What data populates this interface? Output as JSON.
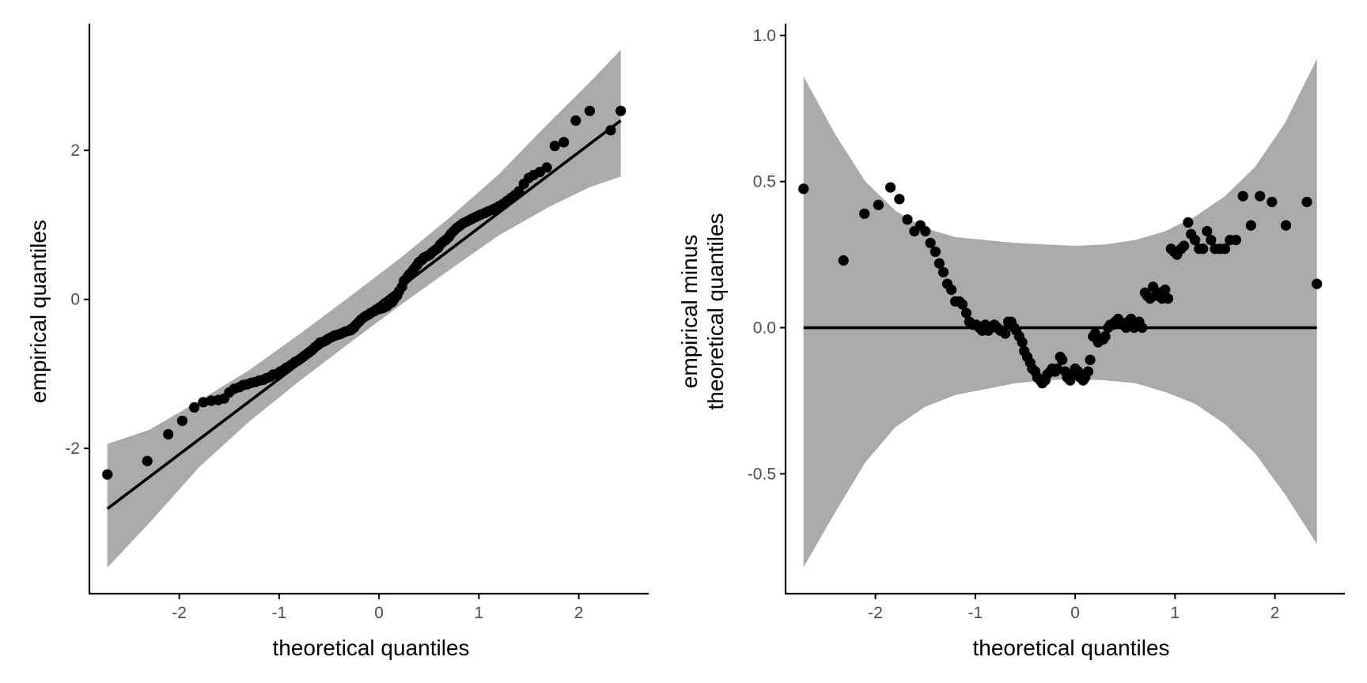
{
  "colors": {
    "band": "#aaaaaa",
    "points": "#000000",
    "line": "#000000",
    "background": "#ffffff"
  },
  "chart_data": [
    {
      "type": "scatter",
      "panel": "left",
      "title": "",
      "xlabel": "theoretical quantiles",
      "ylabel": "empirical quantiles",
      "xlim": [
        -2.9,
        2.7
      ],
      "ylim": [
        -3.95,
        3.7
      ],
      "xticks": [
        -2,
        -1,
        0,
        1,
        2
      ],
      "xtick_labels": [
        "-2",
        "-1",
        "0",
        "1",
        "2"
      ],
      "yticks": [
        -2,
        0,
        2
      ],
      "ytick_labels": [
        "-2",
        "0",
        "2"
      ],
      "grid": false,
      "reference_line": {
        "x": [
          -2.72,
          2.42
        ],
        "y": [
          -2.81,
          2.4
        ]
      },
      "confidence_band": {
        "x": [
          -2.72,
          -2.3,
          -1.8,
          -1.3,
          -0.8,
          -0.3,
          0.2,
          0.7,
          1.2,
          1.7,
          2.1,
          2.42
        ],
        "lower": [
          -3.6,
          -3.0,
          -2.25,
          -1.64,
          -1.1,
          -0.59,
          -0.09,
          0.39,
          0.86,
          1.24,
          1.5,
          1.65
        ],
        "upper": [
          -1.94,
          -1.75,
          -1.36,
          -0.95,
          -0.47,
          0.03,
          0.54,
          1.09,
          1.68,
          2.37,
          2.9,
          3.35
        ]
      },
      "points": {
        "x": [
          -2.72,
          -2.32,
          -2.11,
          -1.97,
          -1.85,
          -1.76,
          -1.68,
          -1.61,
          -1.55,
          -1.5,
          -1.45,
          -1.4,
          -1.36,
          -1.32,
          -1.28,
          -1.24,
          -1.2,
          -1.16,
          -1.13,
          -1.09,
          -1.06,
          -1.02,
          -0.99,
          -0.96,
          -0.93,
          -0.9,
          -0.87,
          -0.84,
          -0.81,
          -0.78,
          -0.75,
          -0.72,
          -0.7,
          -0.67,
          -0.64,
          -0.61,
          -0.59,
          -0.56,
          -0.53,
          -0.51,
          -0.48,
          -0.45,
          -0.43,
          -0.4,
          -0.38,
          -0.35,
          -0.33,
          -0.3,
          -0.28,
          -0.25,
          -0.23,
          -0.2,
          -0.18,
          -0.15,
          -0.13,
          -0.1,
          -0.08,
          -0.05,
          -0.03,
          0.0,
          0.03,
          0.05,
          0.08,
          0.1,
          0.13,
          0.15,
          0.18,
          0.2,
          0.23,
          0.25,
          0.28,
          0.3,
          0.33,
          0.35,
          0.38,
          0.4,
          0.43,
          0.45,
          0.48,
          0.51,
          0.53,
          0.56,
          0.59,
          0.61,
          0.64,
          0.67,
          0.7,
          0.72,
          0.75,
          0.78,
          0.81,
          0.84,
          0.87,
          0.9,
          0.93,
          0.96,
          0.99,
          1.02,
          1.06,
          1.09,
          1.13,
          1.16,
          1.2,
          1.24,
          1.28,
          1.32,
          1.36,
          1.4,
          1.45,
          1.5,
          1.55,
          1.61,
          1.68,
          1.76,
          1.85,
          1.97,
          2.11,
          2.32,
          2.42
        ],
        "y": [
          -2.35,
          -2.17,
          -1.81,
          -1.63,
          -1.45,
          -1.38,
          -1.36,
          -1.35,
          -1.33,
          -1.25,
          -1.2,
          -1.18,
          -1.15,
          -1.14,
          -1.12,
          -1.11,
          -1.09,
          -1.08,
          -1.06,
          -1.04,
          -1.01,
          -1.0,
          -0.97,
          -0.95,
          -0.92,
          -0.9,
          -0.87,
          -0.84,
          -0.82,
          -0.79,
          -0.76,
          -0.73,
          -0.71,
          -0.68,
          -0.64,
          -0.61,
          -0.58,
          -0.57,
          -0.55,
          -0.53,
          -0.51,
          -0.49,
          -0.48,
          -0.47,
          -0.46,
          -0.44,
          -0.43,
          -0.42,
          -0.41,
          -0.38,
          -0.34,
          -0.3,
          -0.27,
          -0.24,
          -0.22,
          -0.2,
          -0.18,
          -0.16,
          -0.14,
          -0.13,
          -0.12,
          -0.11,
          -0.09,
          -0.06,
          -0.04,
          0.0,
          0.05,
          0.11,
          0.17,
          0.25,
          0.29,
          0.33,
          0.37,
          0.41,
          0.46,
          0.5,
          0.53,
          0.56,
          0.58,
          0.6,
          0.63,
          0.66,
          0.69,
          0.73,
          0.77,
          0.8,
          0.84,
          0.88,
          0.92,
          0.96,
          0.99,
          1.02,
          1.04,
          1.06,
          1.08,
          1.1,
          1.12,
          1.14,
          1.16,
          1.18,
          1.2,
          1.22,
          1.25,
          1.28,
          1.32,
          1.36,
          1.4,
          1.45,
          1.55,
          1.63,
          1.67,
          1.71,
          1.77,
          2.06,
          2.11,
          2.4,
          2.53,
          2.27,
          2.53
        ]
      }
    },
    {
      "type": "scatter",
      "panel": "right",
      "title": "",
      "xlabel": "theoretical quantiles",
      "ylabel": [
        "empirical minus",
        "theoretical quantiles"
      ],
      "xlim": [
        -2.9,
        2.7
      ],
      "ylim": [
        -0.91,
        1.04
      ],
      "xticks": [
        -2,
        -1,
        0,
        1,
        2
      ],
      "xtick_labels": [
        "-2",
        "-1",
        "0",
        "1",
        "2"
      ],
      "yticks": [
        -0.5,
        0.0,
        0.5,
        1.0
      ],
      "ytick_labels": [
        "-0.5",
        "0.0",
        "0.5",
        "1.0"
      ],
      "grid": false,
      "reference_line": {
        "x": [
          -2.72,
          2.42
        ],
        "y": [
          0,
          0
        ]
      },
      "confidence_band": {
        "x": [
          -2.72,
          -2.4,
          -2.1,
          -1.8,
          -1.5,
          -1.2,
          -0.9,
          -0.6,
          -0.3,
          0.0,
          0.3,
          0.6,
          0.9,
          1.2,
          1.5,
          1.8,
          2.1,
          2.42
        ],
        "lower": [
          -0.82,
          -0.63,
          -0.46,
          -0.34,
          -0.27,
          -0.23,
          -0.21,
          -0.19,
          -0.18,
          -0.175,
          -0.18,
          -0.19,
          -0.22,
          -0.26,
          -0.33,
          -0.43,
          -0.57,
          -0.74
        ],
        "upper": [
          0.86,
          0.66,
          0.5,
          0.4,
          0.34,
          0.31,
          0.3,
          0.29,
          0.285,
          0.28,
          0.285,
          0.3,
          0.33,
          0.38,
          0.45,
          0.55,
          0.7,
          0.92
        ]
      },
      "points": {
        "x": [
          -2.72,
          -2.32,
          -2.11,
          -1.97,
          -1.85,
          -1.76,
          -1.68,
          -1.61,
          -1.55,
          -1.5,
          -1.45,
          -1.4,
          -1.36,
          -1.32,
          -1.28,
          -1.24,
          -1.2,
          -1.16,
          -1.13,
          -1.09,
          -1.06,
          -1.02,
          -0.99,
          -0.96,
          -0.93,
          -0.9,
          -0.87,
          -0.84,
          -0.81,
          -0.78,
          -0.75,
          -0.72,
          -0.7,
          -0.67,
          -0.64,
          -0.61,
          -0.59,
          -0.56,
          -0.53,
          -0.51,
          -0.48,
          -0.45,
          -0.43,
          -0.4,
          -0.38,
          -0.35,
          -0.33,
          -0.3,
          -0.28,
          -0.25,
          -0.23,
          -0.2,
          -0.18,
          -0.15,
          -0.13,
          -0.1,
          -0.08,
          -0.05,
          -0.03,
          0.0,
          0.03,
          0.05,
          0.08,
          0.1,
          0.13,
          0.15,
          0.18,
          0.2,
          0.23,
          0.25,
          0.28,
          0.3,
          0.33,
          0.35,
          0.38,
          0.4,
          0.43,
          0.45,
          0.48,
          0.51,
          0.53,
          0.56,
          0.59,
          0.61,
          0.64,
          0.67,
          0.7,
          0.72,
          0.75,
          0.78,
          0.81,
          0.84,
          0.87,
          0.9,
          0.93,
          0.96,
          0.99,
          1.02,
          1.06,
          1.09,
          1.13,
          1.16,
          1.2,
          1.24,
          1.28,
          1.32,
          1.36,
          1.4,
          1.45,
          1.5,
          1.55,
          1.61,
          1.68,
          1.76,
          1.85,
          1.97,
          2.11,
          2.32,
          2.42
        ],
        "y": [
          0.475,
          0.23,
          0.39,
          0.42,
          0.48,
          0.44,
          0.37,
          0.33,
          0.35,
          0.33,
          0.29,
          0.26,
          0.22,
          0.19,
          0.15,
          0.13,
          0.09,
          0.09,
          0.08,
          0.05,
          0.02,
          0.01,
          0.01,
          0.0,
          -0.01,
          0.01,
          -0.01,
          0.0,
          0.01,
          0.0,
          -0.01,
          -0.01,
          -0.02,
          0.02,
          0.02,
          0.0,
          -0.01,
          -0.03,
          -0.05,
          -0.08,
          -0.1,
          -0.12,
          -0.14,
          -0.15,
          -0.17,
          -0.18,
          -0.19,
          -0.18,
          -0.16,
          -0.15,
          -0.14,
          -0.15,
          -0.14,
          -0.1,
          -0.11,
          -0.15,
          -0.17,
          -0.18,
          -0.16,
          -0.14,
          -0.15,
          -0.17,
          -0.18,
          -0.17,
          -0.15,
          -0.11,
          -0.03,
          -0.02,
          -0.05,
          -0.04,
          -0.04,
          -0.03,
          0.0,
          0.01,
          0.01,
          0.02,
          0.03,
          0.02,
          0.01,
          0.0,
          0.02,
          0.03,
          0.0,
          0.01,
          0.02,
          0.0,
          0.12,
          0.11,
          0.1,
          0.14,
          0.11,
          0.12,
          0.1,
          0.13,
          0.1,
          0.27,
          0.26,
          0.25,
          0.27,
          0.28,
          0.36,
          0.32,
          0.3,
          0.27,
          0.27,
          0.33,
          0.3,
          0.27,
          0.27,
          0.27,
          0.3,
          0.3,
          0.45,
          0.35,
          0.45,
          0.43,
          0.35,
          0.43,
          0.15
        ]
      }
    }
  ]
}
